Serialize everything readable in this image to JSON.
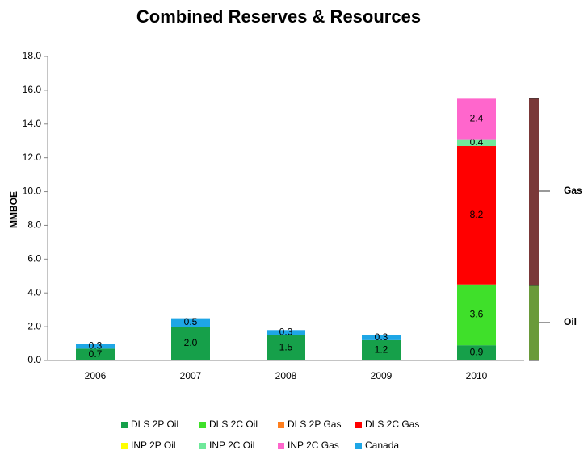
{
  "chart_data": {
    "type": "stacked_bar",
    "title": "Combined Reserves & Resources",
    "y_label": "MMBOE",
    "categories": [
      "2006",
      "2007",
      "2008",
      "2009",
      "2010"
    ],
    "series": [
      {
        "name": "DLS 2P Oil",
        "color": "#16a04a",
        "values": [
          0.7,
          2.0,
          1.5,
          1.2,
          0.9
        ],
        "value_labels": [
          "0.7",
          "2.0",
          "1.5",
          "1.2",
          "0.9"
        ]
      },
      {
        "name": "DLS 2C Oil",
        "color": "#3fe02a",
        "values": [
          0,
          0,
          0,
          0,
          3.6
        ],
        "value_labels": [
          null,
          null,
          null,
          null,
          "3.6"
        ]
      },
      {
        "name": "DLS 2P Gas",
        "color": "#ff7f1e",
        "values": [
          0,
          0,
          0,
          0,
          0
        ],
        "value_labels": [
          null,
          null,
          null,
          null,
          null
        ]
      },
      {
        "name": "DLS 2C Gas",
        "color": "#ff0000",
        "values": [
          0,
          0,
          0,
          0,
          8.2
        ],
        "value_labels": [
          null,
          null,
          null,
          null,
          "8.2"
        ]
      },
      {
        "name": "INP 2P Oil",
        "color": "#ffff00",
        "values": [
          0,
          0,
          0,
          0,
          0
        ],
        "value_labels": [
          null,
          null,
          null,
          null,
          null
        ]
      },
      {
        "name": "INP 2C Oil",
        "color": "#6fe89a",
        "values": [
          0,
          0,
          0,
          0,
          0.4
        ],
        "value_labels": [
          null,
          null,
          null,
          null,
          "0.4"
        ]
      },
      {
        "name": "INP 2C Gas",
        "color": "#ff66cc",
        "values": [
          0,
          0,
          0,
          0,
          2.4
        ],
        "value_labels": [
          null,
          null,
          null,
          null,
          "2.4"
        ]
      },
      {
        "name": "Canada",
        "color": "#1ea6e6",
        "values": [
          0.3,
          0.5,
          0.3,
          0.3,
          0
        ],
        "value_labels": [
          "0.3",
          "0.5",
          "0.3",
          "0.3",
          null
        ]
      }
    ],
    "ylim": [
      0,
      18
    ],
    "yticks": [
      {
        "value": 0,
        "label": "0.0"
      },
      {
        "value": 2,
        "label": "2.0"
      },
      {
        "value": 4,
        "label": "4.0"
      },
      {
        "value": 6,
        "label": "6.0"
      },
      {
        "value": 8,
        "label": "8.0"
      },
      {
        "value": 10,
        "label": "10.0"
      },
      {
        "value": 12,
        "label": "12.0"
      },
      {
        "value": 14,
        "label": "14.0"
      },
      {
        "value": 16,
        "label": "16.0"
      },
      {
        "value": 18,
        "label": "18.0"
      }
    ],
    "annotations": [
      "Gas",
      "Oil"
    ],
    "grid": false
  }
}
